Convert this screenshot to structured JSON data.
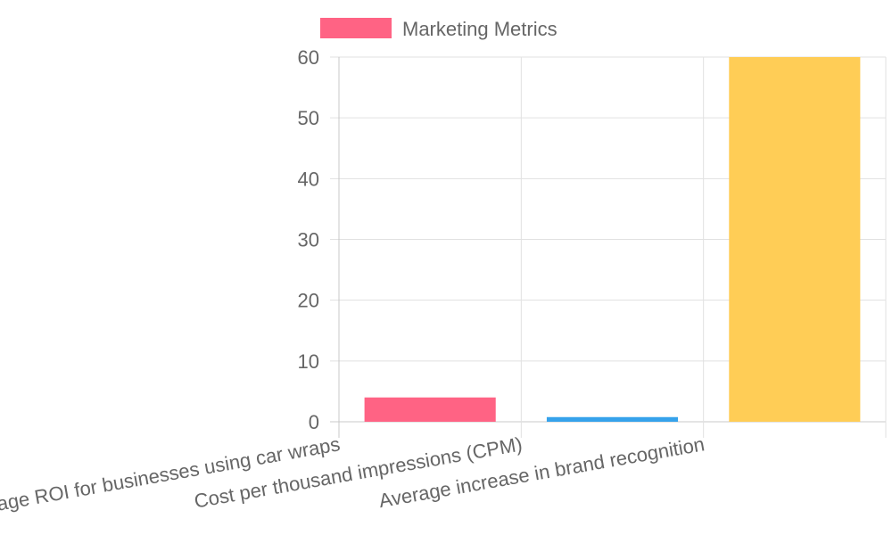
{
  "chart_data": {
    "type": "bar",
    "categories": [
      "Average ROI for businesses using car wraps",
      "Cost per thousand impressions (CPM)",
      "Average increase in brand recognition"
    ],
    "series": [
      {
        "name": "Marketing Metrics",
        "values": [
          4,
          0.77,
          60
        ],
        "colors": [
          "#ff6384",
          "#36a2eb",
          "#ffcd56"
        ]
      }
    ],
    "ylim": [
      0,
      60
    ],
    "yticks": [
      0,
      10,
      20,
      30,
      40,
      50,
      60
    ],
    "grid": true,
    "legend_position": "top"
  },
  "legend": {
    "label": "Marketing Metrics",
    "swatch_color": "#ff6384"
  },
  "colors": {
    "grid": "#e1e1e1",
    "axis": "#c8c8c8",
    "text": "#666666"
  }
}
